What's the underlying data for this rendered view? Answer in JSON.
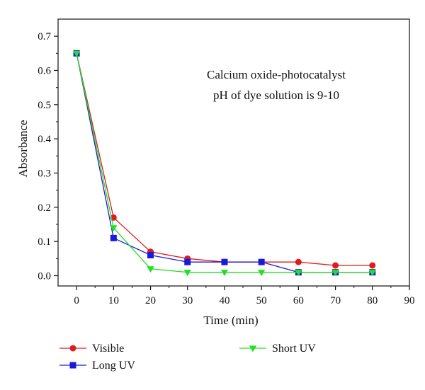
{
  "chart_data": {
    "type": "line",
    "title": "",
    "xlabel": "Time (min)",
    "ylabel": "Absorbance",
    "xlim": [
      -5,
      90
    ],
    "ylim": [
      -0.03,
      0.75
    ],
    "xticks": [
      0,
      10,
      20,
      30,
      40,
      50,
      60,
      70,
      80,
      90
    ],
    "yticks": [
      0.0,
      0.1,
      0.2,
      0.3,
      0.4,
      0.5,
      0.6,
      0.7
    ],
    "x": [
      0,
      10,
      20,
      30,
      40,
      50,
      60,
      70,
      80
    ],
    "grid": false,
    "legend_position": "bottom",
    "annotations": [
      "Calcium oxide-photocatalyst",
      "pH of dye solution is 9-10"
    ],
    "series": [
      {
        "name": "Visible",
        "color": "#e31a1c",
        "marker": "circle",
        "values": [
          0.65,
          0.17,
          0.07,
          0.05,
          0.04,
          0.04,
          0.04,
          0.03,
          0.03
        ]
      },
      {
        "name": "Long UV",
        "color": "#1a1adb",
        "marker": "square",
        "values": [
          0.65,
          0.11,
          0.06,
          0.04,
          0.04,
          0.04,
          0.01,
          0.01,
          0.01
        ]
      },
      {
        "name": "Short UV",
        "color": "#22e022",
        "marker": "triangle-down",
        "values": [
          0.65,
          0.14,
          0.02,
          0.01,
          0.01,
          0.01,
          0.01,
          0.01,
          0.01
        ]
      }
    ]
  }
}
